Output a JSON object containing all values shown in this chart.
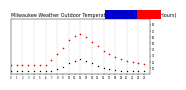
{
  "title": "Milwaukee Weather Outdoor Temperature vs Heat Index (24 Hours)",
  "title_fontsize": 3.5,
  "background_color": "#ffffff",
  "xlim": [
    0,
    24
  ],
  "ylim": [
    0,
    90
  ],
  "ytick_vals": [
    10,
    20,
    30,
    40,
    50,
    60,
    70,
    80
  ],
  "ytick_labels": [
    "1",
    "2",
    "3",
    "4",
    "5",
    "6",
    "7",
    "8"
  ],
  "grid_color": "#888888",
  "temp_color": "#ff0000",
  "heat_color": "#000000",
  "legend_blue": "#0000cc",
  "legend_red": "#ff0000",
  "temp_x": [
    0,
    1,
    2,
    3,
    4,
    5,
    6,
    7,
    8,
    9,
    10,
    11,
    12,
    13,
    14,
    15,
    16,
    17,
    18,
    19,
    20,
    21,
    22,
    23
  ],
  "temp_y": [
    15,
    15,
    15,
    15,
    15,
    15,
    15,
    23,
    33,
    43,
    55,
    62,
    65,
    60,
    52,
    45,
    38,
    32,
    28,
    25,
    22,
    20,
    18,
    16
  ],
  "heat_x": [
    0,
    1,
    2,
    3,
    4,
    5,
    6,
    7,
    8,
    9,
    10,
    11,
    12,
    13,
    14,
    15,
    16,
    17,
    18,
    19,
    20,
    21,
    22,
    23
  ],
  "heat_y": [
    5,
    5,
    5,
    5,
    5,
    5,
    5,
    5,
    8,
    12,
    18,
    22,
    25,
    22,
    18,
    14,
    10,
    8,
    6,
    5,
    5,
    5,
    5,
    5
  ],
  "grid_x_positions": [
    2,
    4,
    6,
    8,
    10,
    12,
    14,
    16,
    18,
    20,
    22
  ],
  "xtick_positions": [
    0,
    1,
    2,
    3,
    4,
    5,
    6,
    7,
    8,
    9,
    10,
    11,
    12,
    13,
    14,
    15,
    16,
    17,
    18,
    19,
    20,
    21,
    22,
    23
  ],
  "xtick_labels": [
    "0",
    "1",
    "2",
    "3",
    "4",
    "5",
    "6",
    "7",
    "8",
    "9",
    "10",
    "11",
    "12",
    "13",
    "14",
    "15",
    "16",
    "17",
    "18",
    "19",
    "20",
    "21",
    "22",
    "23"
  ]
}
